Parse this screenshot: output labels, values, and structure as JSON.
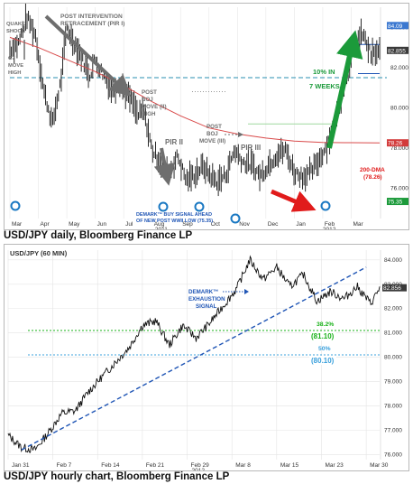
{
  "captions": {
    "daily": "USD/JPY daily, Bloomberg Finance LP",
    "hourly": "USD/JPY hourly chart, Bloomberg Finance LP"
  },
  "colors": {
    "price": "#111111",
    "ma": "#d94a4a",
    "trend": "#1f55b5",
    "up_arrow": "#1b9a3a",
    "down_arrow": "#e11b1b",
    "retrace_382": "#19b219",
    "retrace_50": "#3aa0dc",
    "annotation_grey": "#6e6e6e",
    "highlight": "#19b219",
    "circle": "#1a78c2"
  },
  "chart_data": [
    {
      "type": "line",
      "title": "",
      "xlabel": "",
      "ylabel": "",
      "x_tick_labels": [
        "Mar",
        "Apr",
        "May",
        "Jun",
        "Jul",
        "Aug",
        "Sep",
        "Oct",
        "Nov",
        "Dec",
        "Jan",
        "Feb",
        "Mar"
      ],
      "year_labels": [
        "2011",
        "2012"
      ],
      "ylim": [
        74.5,
        85.0
      ],
      "y_tick_labels": [
        "84.000",
        "82.000",
        "80.000",
        "78.000",
        "76.000"
      ],
      "grid": true,
      "series": [
        {
          "x": [
            0,
            0.3,
            0.6,
            0.9,
            1.2,
            1.5,
            1.8,
            2.0,
            2.2,
            2.5,
            2.8,
            3.0,
            3.3,
            3.6,
            3.9,
            4.0,
            4.3,
            4.5,
            4.7,
            5.0,
            5.3,
            5.6,
            5.9,
            6.2,
            6.5,
            6.8,
            7.0,
            7.3,
            7.6,
            7.9,
            8.2,
            8.5,
            8.8,
            9.1,
            9.4,
            9.7,
            10.0,
            10.3,
            10.6,
            10.9,
            11.2,
            11.5,
            11.8,
            12.1,
            12.4,
            12.7,
            13.0
          ],
          "values": [
            82.9,
            83.2,
            84.5,
            83.6,
            80.8,
            79.2,
            81.4,
            84.0,
            83.4,
            82.6,
            81.6,
            82.4,
            81.6,
            80.9,
            81.3,
            80.9,
            80.3,
            79.6,
            79.9,
            77.9,
            77.3,
            76.8,
            77.6,
            76.4,
            76.7,
            77.1,
            76.7,
            76.3,
            76.7,
            77.9,
            77.3,
            77.2,
            76.6,
            77.2,
            77.7,
            77.9,
            76.8,
            76.6,
            76.8,
            77.5,
            78.3,
            79.6,
            81.5,
            82.9,
            83.7,
            82.6,
            82.8
          ]
        },
        {
          "name": "200-DMA",
          "x": [
            0,
            1,
            2,
            3,
            4,
            5,
            6,
            7,
            8,
            9,
            10,
            11,
            12,
            13
          ],
          "values": [
            83.5,
            83.0,
            82.4,
            81.8,
            81.1,
            80.3,
            79.6,
            79.0,
            78.7,
            78.5,
            78.35,
            78.28,
            78.27,
            78.26
          ]
        }
      ],
      "hlines": [
        {
          "value": 81.5,
          "style": "dashed"
        },
        {
          "value": 80.8,
          "style": "dotted"
        }
      ],
      "price_labels": [
        "84.09",
        "82.855",
        "78.26",
        "75.35"
      ],
      "annotations": [
        {
          "text": "POST INTERVENTION RETRACEMENT (PIR I)"
        },
        {
          "text": "QUAKE SHOCK"
        },
        {
          "text": "G7 MOVE HIGH"
        },
        {
          "text": "POST BOJ MOVE (II) HIGH"
        },
        {
          "text": "POST BOJ MOVE (III)"
        },
        {
          "text": "PIR II"
        },
        {
          "text": "PIR III"
        },
        {
          "text": "DEMARK™ BUY SIGNAL AHEAD OF NEW POST WWII LOW (75.35)"
        },
        {
          "text": "10% IN 7 WEEKS"
        },
        {
          "text": "200-DMA (78.26)"
        }
      ]
    },
    {
      "type": "line",
      "title": "USD/JPY (60 MIN)",
      "xlabel": "",
      "ylabel": "",
      "x_tick_labels": [
        "Jan 31",
        "Feb 7",
        "Feb 14",
        "Feb 21",
        "Feb 29",
        "Mar 8",
        "Mar 15",
        "Mar 23",
        "Mar 30"
      ],
      "year_label": "2012",
      "ylim": [
        75.8,
        84.4
      ],
      "y_tick_labels": [
        "84.000",
        "83.000",
        "82.000",
        "81.000",
        "80.000",
        "79.000",
        "78.000",
        "77.000",
        "76.000"
      ],
      "grid": true,
      "series": [
        {
          "x": [
            0,
            0.3,
            0.6,
            0.9,
            1.2,
            1.5,
            1.8,
            2.1,
            2.4,
            2.7,
            3.0,
            3.3,
            3.6,
            3.9,
            4.2,
            4.5,
            4.8,
            5.1,
            5.4,
            5.7,
            6.0,
            6.3,
            6.6,
            6.9,
            7.2,
            7.5,
            7.8,
            8.1,
            8.3
          ],
          "values": [
            76.8,
            76.3,
            76.2,
            76.9,
            77.7,
            77.8,
            78.6,
            79.2,
            79.8,
            80.4,
            81.3,
            81.5,
            80.5,
            81.3,
            80.8,
            81.4,
            82.1,
            82.8,
            84.0,
            83.2,
            83.7,
            82.9,
            83.4,
            82.3,
            82.7,
            82.4,
            82.9,
            82.2,
            82.85
          ]
        }
      ],
      "trendline": {
        "from": [
          0.3,
          76.2
        ],
        "to": [
          8.0,
          83.7
        ]
      },
      "hlines": [
        {
          "value": 81.1,
          "label": "38.2%",
          "value_label": "(81.10)"
        },
        {
          "value": 80.1,
          "label": "50%",
          "value_label": "(80.10)"
        }
      ],
      "price_labels": [
        "82.856"
      ],
      "annotations": [
        {
          "text": "DEMARK™ EXHAUSTION SIGNAL"
        }
      ]
    }
  ]
}
